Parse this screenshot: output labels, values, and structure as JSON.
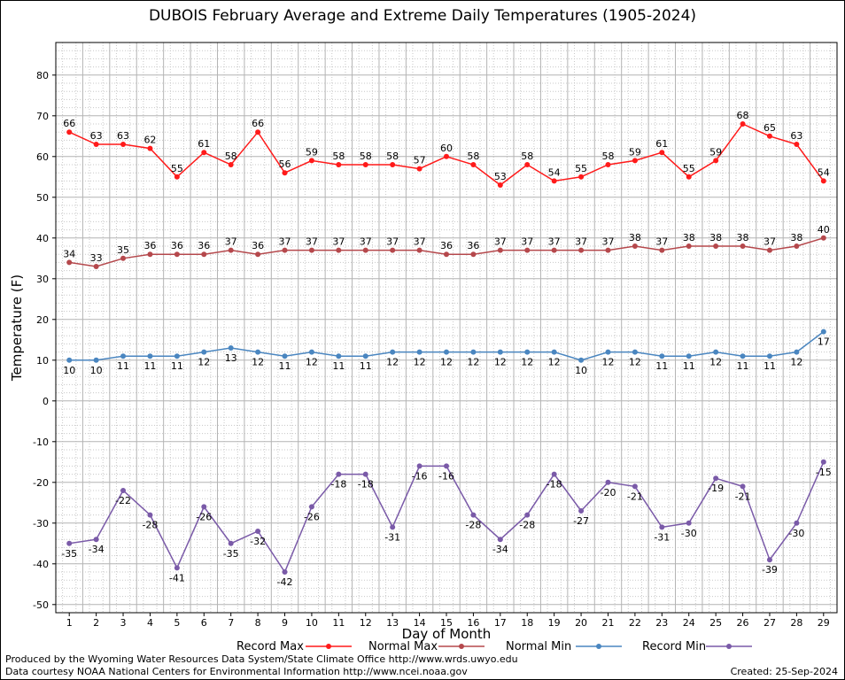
{
  "chart_data": {
    "type": "line",
    "title": "DUBOIS February Average and Extreme Daily Temperatures (1905-2024)",
    "xlabel": "Day of Month",
    "ylabel": "Temperature (F)",
    "ylim": [
      -52,
      88
    ],
    "yticks": [
      -50,
      -40,
      -30,
      -20,
      -10,
      0,
      10,
      20,
      30,
      40,
      50,
      60,
      70,
      80
    ],
    "x": [
      1,
      2,
      3,
      4,
      5,
      6,
      7,
      8,
      9,
      10,
      11,
      12,
      13,
      14,
      15,
      16,
      17,
      18,
      19,
      20,
      21,
      22,
      23,
      24,
      25,
      26,
      27,
      28,
      29
    ],
    "grid": true,
    "legend": "bottom",
    "series": [
      {
        "name": "Record Max",
        "color": "#ff1a1a",
        "values": [
          66,
          63,
          63,
          62,
          55,
          61,
          58,
          66,
          56,
          59,
          58,
          58,
          58,
          57,
          60,
          58,
          53,
          58,
          54,
          55,
          58,
          59,
          61,
          55,
          59,
          68,
          65,
          63,
          54
        ],
        "labels": [
          66,
          63,
          63,
          62,
          55,
          61,
          58,
          66,
          56,
          59,
          58,
          58,
          58,
          57,
          60,
          58,
          53,
          58,
          54,
          55,
          58,
          59,
          61,
          55,
          59,
          68,
          65,
          63,
          54
        ]
      },
      {
        "name": "Normal Max",
        "color": "#b5484c",
        "values": [
          34,
          33,
          35,
          36,
          36,
          36,
          37,
          36,
          37,
          37,
          37,
          37,
          37,
          37,
          36,
          36,
          37,
          37,
          37,
          37,
          37,
          38,
          37,
          38,
          38,
          38,
          37,
          38,
          40
        ],
        "labels": [
          34,
          33,
          35,
          36,
          36,
          36,
          37,
          36,
          37,
          37,
          37,
          37,
          37,
          37,
          36,
          36,
          37,
          37,
          37,
          37,
          37,
          38,
          37,
          38,
          38,
          38,
          37,
          38,
          40
        ]
      },
      {
        "name": "Normal Min",
        "color": "#4a86c0",
        "values": [
          10,
          10,
          11,
          11,
          11,
          12,
          13,
          12,
          11,
          12,
          11,
          11,
          12,
          12,
          12,
          12,
          12,
          12,
          12,
          10,
          12,
          12,
          11,
          11,
          12,
          11,
          11,
          12,
          17
        ],
        "labels": [
          10,
          10,
          11,
          11,
          11,
          12,
          13,
          12,
          11,
          12,
          11,
          11,
          12,
          12,
          12,
          12,
          12,
          12,
          12,
          10,
          12,
          12,
          11,
          11,
          12,
          11,
          11,
          12,
          17
        ]
      },
      {
        "name": "Record Min",
        "color": "#7a5aa8",
        "values": [
          -35,
          -34,
          -22,
          -28,
          -41,
          -26,
          -35,
          -32,
          -42,
          -26,
          -18,
          -18,
          -31,
          -16,
          -16,
          -28,
          -34,
          -28,
          -18,
          -27,
          -20,
          -21,
          -31,
          -30,
          -19,
          -21,
          -39,
          -30,
          -15
        ],
        "labels": [
          -35,
          -34,
          -22,
          -28,
          -41,
          -26,
          -35,
          -32,
          -42,
          -26,
          -18,
          -18,
          -31,
          -16,
          -16,
          -28,
          -34,
          -28,
          -18,
          -27,
          -20,
          -21,
          -31,
          -30,
          -19,
          -21,
          -39,
          -30,
          -15
        ]
      }
    ]
  },
  "footer": {
    "produced_by": "Produced by the Wyoming Water Resources Data System/State Climate Office http://www.wrds.uwyo.edu",
    "courtesy": "Data courtesy NOAA National Centers for Environmental Information http://www.ncei.noaa.gov",
    "created": "Created: 25-Sep-2024"
  }
}
